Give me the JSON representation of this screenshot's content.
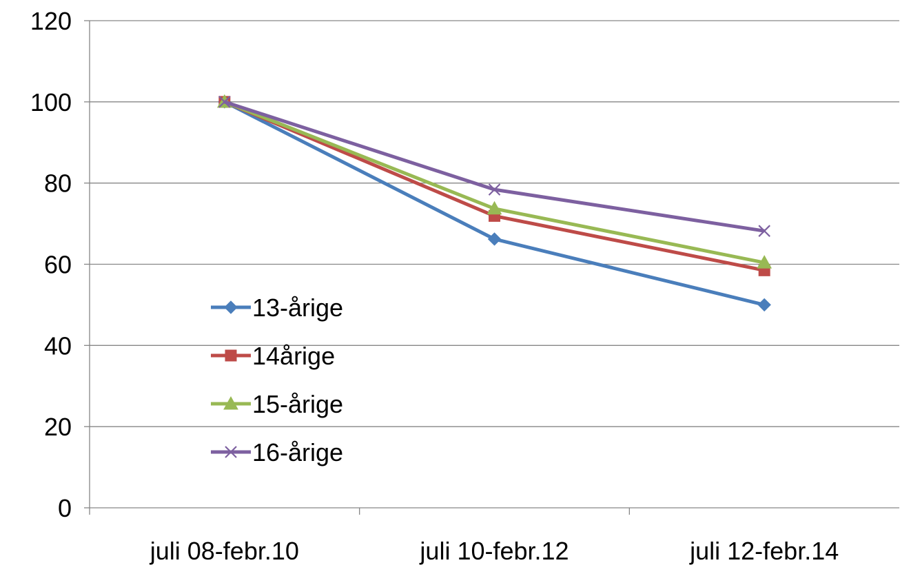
{
  "chart_data": {
    "type": "line",
    "title": "",
    "xlabel": "",
    "ylabel": "",
    "categories": [
      "juli 08-febr.10",
      "juli 10-febr.12",
      "juli 12-febr.14"
    ],
    "ylim": [
      0,
      120
    ],
    "yticks": [
      0,
      20,
      40,
      60,
      80,
      100,
      120
    ],
    "grid": true,
    "legend_position": "center-left",
    "series": [
      {
        "name": "13-årige",
        "values": [
          100,
          66.2,
          50.0
        ],
        "color": "#4a7ebb",
        "marker": "diamond"
      },
      {
        "name": "14årige",
        "values": [
          100,
          71.9,
          58.5
        ],
        "color": "#be4b48",
        "marker": "square"
      },
      {
        "name": "15-årige",
        "values": [
          100,
          73.7,
          60.4
        ],
        "color": "#98b954",
        "marker": "triangle"
      },
      {
        "name": "16-årige",
        "values": [
          100,
          78.4,
          68.2
        ],
        "color": "#7d60a0",
        "marker": "x"
      }
    ]
  }
}
